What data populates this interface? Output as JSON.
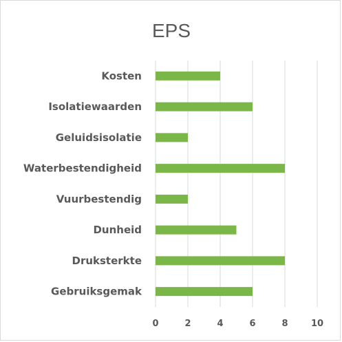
{
  "chart_data": {
    "type": "bar",
    "orientation": "horizontal",
    "title": "EPS",
    "categories": [
      "Kosten",
      "Isolatiewaarden",
      "Geluidsisolatie",
      "Waterbestendigheid",
      "Vuurbestendig",
      "Dunheid",
      "Druksterkte",
      "Gebruiksgemak"
    ],
    "values": [
      4,
      6,
      2,
      8,
      2,
      5,
      8,
      6
    ],
    "xlim": [
      0,
      10
    ],
    "xticks": [
      "0",
      "2",
      "4",
      "6",
      "8",
      "10"
    ],
    "grid": true,
    "bar_color": "#7ab648"
  }
}
